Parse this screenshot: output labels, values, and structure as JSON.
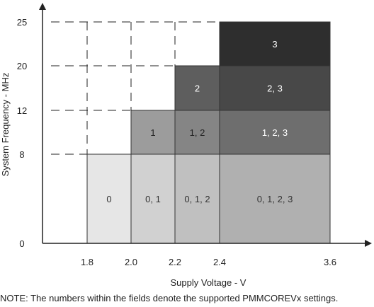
{
  "chart_data": {
    "type": "heatmap",
    "xlabel": "Supply Voltage - V",
    "ylabel": "System Frequency - MHz",
    "x_ticks": [
      1.8,
      2.0,
      2.2,
      2.4,
      3.6
    ],
    "y_ticks": [
      0,
      8,
      12,
      20,
      25
    ],
    "x_tick_labels": [
      "1.8",
      "2.0",
      "2.2",
      "2.4",
      "3.6"
    ],
    "y_tick_labels": [
      "0",
      "8",
      "12",
      "20",
      "25"
    ],
    "xlim": [
      1.8,
      3.6
    ],
    "ylim": [
      0,
      25
    ],
    "regions": [
      {
        "x": [
          1.8,
          2.0
        ],
        "y": [
          0,
          8
        ],
        "label": "0",
        "color": "#e6e6e6",
        "text_color": "#333333"
      },
      {
        "x": [
          2.0,
          2.2
        ],
        "y": [
          0,
          8
        ],
        "label": "0, 1",
        "color": "#d1d1d1",
        "text_color": "#333333"
      },
      {
        "x": [
          2.2,
          2.4
        ],
        "y": [
          0,
          8
        ],
        "label": "0, 1, 2",
        "color": "#c0c0c0",
        "text_color": "#333333"
      },
      {
        "x": [
          2.4,
          3.6
        ],
        "y": [
          0,
          8
        ],
        "label": "0, 1, 2, 3",
        "color": "#b0b0b0",
        "text_color": "#333333"
      },
      {
        "x": [
          2.0,
          2.2
        ],
        "y": [
          8,
          12
        ],
        "label": "1",
        "color": "#9c9c9c",
        "text_color": "#222222"
      },
      {
        "x": [
          2.2,
          2.4
        ],
        "y": [
          8,
          12
        ],
        "label": "1, 2",
        "color": "#858585",
        "text_color": "#222222"
      },
      {
        "x": [
          2.4,
          3.6
        ],
        "y": [
          8,
          12
        ],
        "label": "1, 2, 3",
        "color": "#6e6e6e",
        "text_color": "#ffffff"
      },
      {
        "x": [
          2.2,
          2.4
        ],
        "y": [
          12,
          20
        ],
        "label": "2",
        "color": "#5e5e5e",
        "text_color": "#ffffff"
      },
      {
        "x": [
          2.4,
          3.6
        ],
        "y": [
          12,
          20
        ],
        "label": "2, 3",
        "color": "#484848",
        "text_color": "#ffffff"
      },
      {
        "x": [
          2.4,
          3.6
        ],
        "y": [
          20,
          25
        ],
        "label": "3",
        "color": "#2e2e2e",
        "text_color": "#ffffff"
      }
    ],
    "grid": "dashed guide lines"
  },
  "note": "NOTE: The numbers within the fields denote the supported PMMCOREVx settings."
}
